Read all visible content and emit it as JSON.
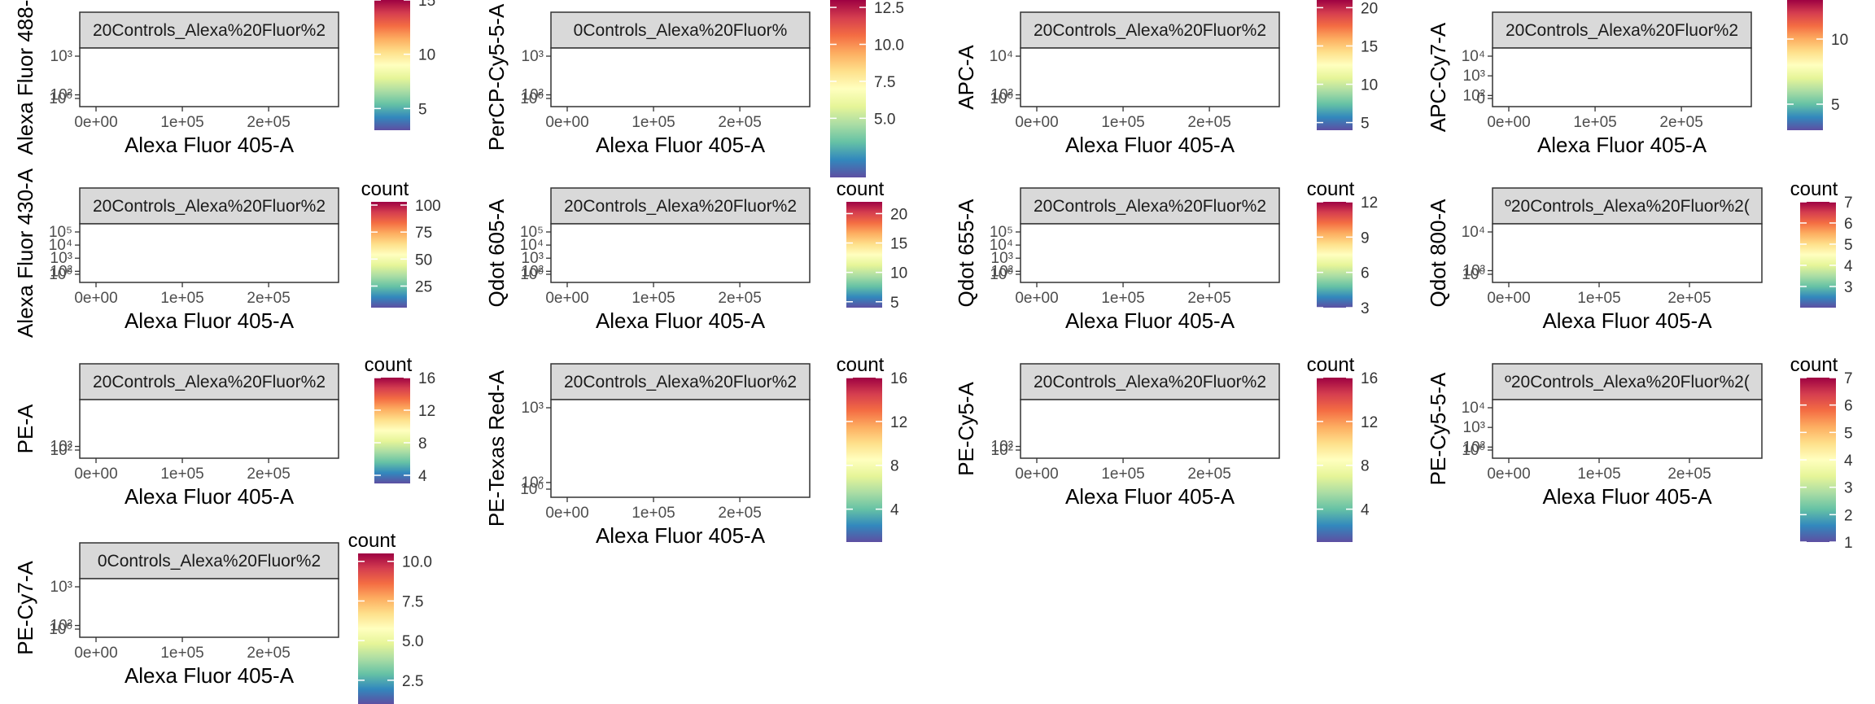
{
  "page": {
    "background": "#ffffff"
  },
  "colorscale": [
    "#5e4fa2",
    "#3288bd",
    "#66c2a5",
    "#abdda4",
    "#e6f598",
    "#ffffbf",
    "#fee08b",
    "#fdae61",
    "#f46d43",
    "#d53e4f",
    "#9e0142"
  ],
  "chart_data": [
    {
      "type": "scatter",
      "strip": "20Controls_Alexa%20Fluor%2",
      "xlabel": "Alexa Fluor 405-A",
      "ylabel": "Alexa Fluor 488-",
      "xticks": [
        "0e+00",
        "1e+05",
        "2e+05"
      ],
      "yticks": [
        "10⁰",
        "10²",
        "10³"
      ],
      "legend_title": "",
      "legend_ticks": [
        "5",
        "10",
        "15"
      ],
      "count_range": [
        3,
        15
      ]
    },
    {
      "type": "scatter",
      "strip": "0Controls_Alexa%20Fluor%",
      "xlabel": "Alexa Fluor 405-A",
      "ylabel": "PerCP-Cy5-5-A",
      "xticks": [
        "0e+00",
        "1e+05",
        "2e+05"
      ],
      "yticks": [
        "10⁰",
        "10²",
        "10³"
      ],
      "legend_title": "",
      "legend_ticks": [
        "5.0",
        "7.5",
        "10.0",
        "12.5"
      ],
      "count_range": [
        1,
        13
      ]
    },
    {
      "type": "scatter",
      "strip": "20Controls_Alexa%20Fluor%2",
      "xlabel": "Alexa Fluor 405-A",
      "ylabel": "APC-A",
      "xticks": [
        "0e+00",
        "1e+05",
        "2e+05"
      ],
      "yticks": [
        "10⁰",
        "10²",
        "10⁴"
      ],
      "legend_title": "",
      "legend_ticks": [
        "5",
        "10",
        "15",
        "20"
      ],
      "count_range": [
        4,
        21
      ]
    },
    {
      "type": "scatter",
      "strip": "20Controls_Alexa%20Fluor%2",
      "xlabel": "Alexa Fluor 405-A",
      "ylabel": "APC-Cy7-A",
      "xticks": [
        "0e+00",
        "1e+05",
        "2e+05"
      ],
      "yticks": [
        "0",
        "10²",
        "10³",
        "10⁴"
      ],
      "legend_title": "",
      "legend_ticks": [
        "5",
        "10"
      ],
      "count_range": [
        3,
        13
      ]
    },
    {
      "type": "scatter",
      "strip": "20Controls_Alexa%20Fluor%2",
      "xlabel": "Alexa Fluor 405-A",
      "ylabel": "Alexa Fluor 430-A",
      "xticks": [
        "0e+00",
        "1e+05",
        "2e+05"
      ],
      "yticks": [
        "10⁰",
        "10²",
        "10³",
        "10⁴",
        "10⁵"
      ],
      "legend_title": "count",
      "legend_ticks": [
        "25",
        "50",
        "75",
        "100"
      ],
      "count_range": [
        5,
        103
      ]
    },
    {
      "type": "scatter",
      "strip": "20Controls_Alexa%20Fluor%2",
      "xlabel": "Alexa Fluor 405-A",
      "ylabel": "Qdot 605-A",
      "xticks": [
        "0e+00",
        "1e+05",
        "2e+05"
      ],
      "yticks": [
        "10⁰",
        "10²",
        "10³",
        "10⁴",
        "10⁵"
      ],
      "legend_title": "count",
      "legend_ticks": [
        "5",
        "10",
        "15",
        "20"
      ],
      "count_range": [
        4,
        22
      ]
    },
    {
      "type": "scatter",
      "strip": "20Controls_Alexa%20Fluor%2",
      "xlabel": "Alexa Fluor 405-A",
      "ylabel": "Qdot 655-A",
      "xticks": [
        "0e+00",
        "1e+05",
        "2e+05"
      ],
      "yticks": [
        "10⁰",
        "10²",
        "10³",
        "10⁴",
        "10⁵"
      ],
      "legend_title": "count",
      "legend_ticks": [
        "3",
        "6",
        "9",
        "12"
      ],
      "count_range": [
        3,
        12
      ]
    },
    {
      "type": "scatter",
      "strip": "º20Controls_Alexa%20Fluor%2(",
      "xlabel": "Alexa Fluor 405-A",
      "ylabel": "Qdot 800-A",
      "xticks": [
        "0e+00",
        "1e+05",
        "2e+05"
      ],
      "yticks": [
        "10⁰",
        "10³",
        "10⁴"
      ],
      "legend_title": "count",
      "legend_ticks": [
        "3",
        "4",
        "5",
        "6",
        "7"
      ],
      "count_range": [
        2,
        7
      ]
    },
    {
      "type": "scatter",
      "strip": "20Controls_Alexa%20Fluor%2",
      "xlabel": "Alexa Fluor 405-A",
      "ylabel": "PE-A",
      "xticks": [
        "0e+00",
        "1e+05",
        "2e+05"
      ],
      "yticks": [
        "10²",
        "10³"
      ],
      "legend_title": "count",
      "legend_ticks": [
        "4",
        "8",
        "12",
        "16"
      ],
      "count_range": [
        3,
        16
      ]
    },
    {
      "type": "scatter",
      "strip": "20Controls_Alexa%20Fluor%2",
      "xlabel": "Alexa Fluor 405-A",
      "ylabel": "PE-Texas Red-A",
      "xticks": [
        "0e+00",
        "1e+05",
        "2e+05"
      ],
      "yticks": [
        "10⁰",
        "10²",
        "10³"
      ],
      "legend_title": "count",
      "legend_ticks": [
        "4",
        "8",
        "12",
        "16"
      ],
      "count_range": [
        1,
        16
      ]
    },
    {
      "type": "scatter",
      "strip": "20Controls_Alexa%20Fluor%2",
      "xlabel": "Alexa Fluor 405-A",
      "ylabel": "PE-Cy5-A",
      "xticks": [
        "0e+00",
        "1e+05",
        "2e+05"
      ],
      "yticks": [
        "10²",
        "10³"
      ],
      "legend_title": "count",
      "legend_ticks": [
        "4",
        "8",
        "12",
        "16"
      ],
      "count_range": [
        1,
        16
      ]
    },
    {
      "type": "scatter",
      "strip": "º20Controls_Alexa%20Fluor%2(",
      "xlabel": "Alexa Fluor 405-A",
      "ylabel": "PE-Cy5-5-A",
      "xticks": [
        "0e+00",
        "1e+05",
        "2e+05"
      ],
      "yticks": [
        "10⁰",
        "10²",
        "10³",
        "10⁴"
      ],
      "legend_title": "count",
      "legend_ticks": [
        "1",
        "2",
        "3",
        "4",
        "5",
        "6",
        "7"
      ],
      "count_range": [
        1,
        7
      ]
    },
    {
      "type": "scatter",
      "strip": "0Controls_Alexa%20Fluor%2",
      "xlabel": "Alexa Fluor 405-A",
      "ylabel": "PE-Cy7-A",
      "xticks": [
        "0e+00",
        "1e+05",
        "2e+05"
      ],
      "yticks": [
        "10⁰",
        "10²",
        "10³"
      ],
      "legend_title": "count",
      "legend_ticks": [
        "2.5",
        "5.0",
        "7.5",
        "10.0"
      ],
      "count_range": [
        1,
        10.5
      ]
    }
  ]
}
